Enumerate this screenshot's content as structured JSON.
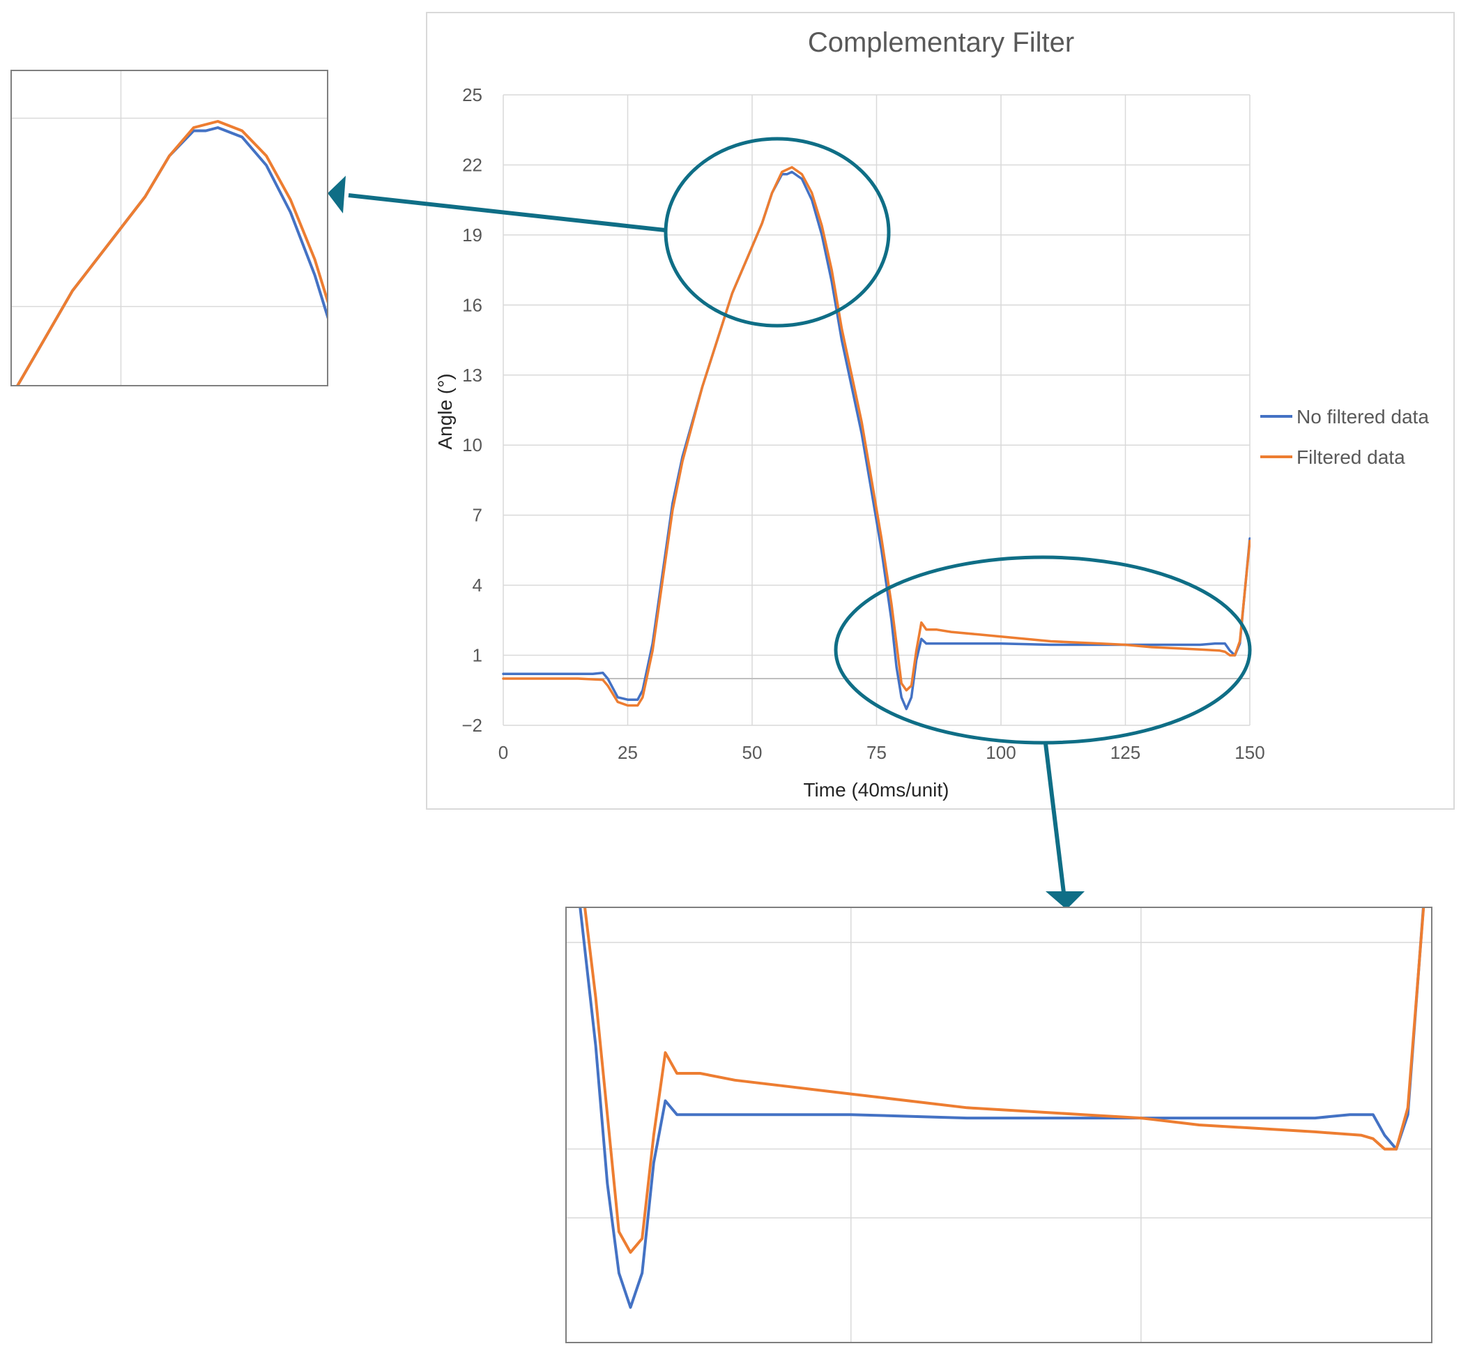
{
  "chart_data": {
    "type": "line",
    "title": "Complementary Filter",
    "xlabel": "Time (40ms/unit)",
    "ylabel": "Angle (°)",
    "xlim": [
      0,
      150
    ],
    "ylim": [
      -2,
      25
    ],
    "x_ticks": [
      0,
      25,
      50,
      75,
      100,
      125,
      150
    ],
    "y_ticks": [
      -2,
      1,
      4,
      7,
      10,
      13,
      16,
      19,
      22,
      25
    ],
    "grid": true,
    "legend_position": "right",
    "series": [
      {
        "name": "No filtered data",
        "color": "#4472c4",
        "points": [
          [
            0,
            0.2
          ],
          [
            5,
            0.2
          ],
          [
            10,
            0.2
          ],
          [
            15,
            0.2
          ],
          [
            18,
            0.2
          ],
          [
            20,
            0.25
          ],
          [
            21,
            0.0
          ],
          [
            23,
            -0.8
          ],
          [
            25,
            -0.9
          ],
          [
            27,
            -0.9
          ],
          [
            28,
            -0.5
          ],
          [
            30,
            1.5
          ],
          [
            32,
            4.5
          ],
          [
            34,
            7.5
          ],
          [
            36,
            9.5
          ],
          [
            38,
            11
          ],
          [
            40,
            12.5
          ],
          [
            43,
            14.5
          ],
          [
            46,
            16.5
          ],
          [
            49,
            18.0
          ],
          [
            52,
            19.5
          ],
          [
            54,
            20.8
          ],
          [
            56,
            21.6
          ],
          [
            57,
            21.6
          ],
          [
            58,
            21.7
          ],
          [
            60,
            21.4
          ],
          [
            62,
            20.5
          ],
          [
            64,
            19.0
          ],
          [
            66,
            17.0
          ],
          [
            68,
            14.5
          ],
          [
            70,
            12.5
          ],
          [
            72,
            10.5
          ],
          [
            74,
            8
          ],
          [
            76,
            5.5
          ],
          [
            78,
            2.5
          ],
          [
            79,
            0.5
          ],
          [
            80,
            -0.8
          ],
          [
            81,
            -1.3
          ],
          [
            82,
            -0.8
          ],
          [
            83,
            0.8
          ],
          [
            84,
            1.7
          ],
          [
            85,
            1.5
          ],
          [
            86,
            1.5
          ],
          [
            90,
            1.5
          ],
          [
            95,
            1.5
          ],
          [
            100,
            1.5
          ],
          [
            110,
            1.45
          ],
          [
            120,
            1.45
          ],
          [
            130,
            1.45
          ],
          [
            140,
            1.45
          ],
          [
            143,
            1.5
          ],
          [
            145,
            1.5
          ],
          [
            146,
            1.2
          ],
          [
            147,
            1.0
          ],
          [
            148,
            1.5
          ],
          [
            150,
            6.0
          ]
        ]
      },
      {
        "name": "Filtered data",
        "color": "#ed7d31",
        "points": [
          [
            0,
            0
          ],
          [
            5,
            0
          ],
          [
            10,
            0
          ],
          [
            15,
            0
          ],
          [
            20,
            -0.05
          ],
          [
            21,
            -0.3
          ],
          [
            23,
            -1.0
          ],
          [
            25,
            -1.15
          ],
          [
            27,
            -1.15
          ],
          [
            28,
            -0.8
          ],
          [
            30,
            1.2
          ],
          [
            32,
            4.2
          ],
          [
            34,
            7.2
          ],
          [
            36,
            9.3
          ],
          [
            38,
            10.9
          ],
          [
            40,
            12.5
          ],
          [
            43,
            14.5
          ],
          [
            46,
            16.5
          ],
          [
            49,
            18
          ],
          [
            52,
            19.5
          ],
          [
            54,
            20.8
          ],
          [
            56,
            21.7
          ],
          [
            58,
            21.9
          ],
          [
            60,
            21.6
          ],
          [
            62,
            20.8
          ],
          [
            64,
            19.4
          ],
          [
            66,
            17.5
          ],
          [
            68,
            15
          ],
          [
            70,
            13
          ],
          [
            72,
            11
          ],
          [
            74,
            8.5
          ],
          [
            76,
            6
          ],
          [
            78,
            3.2
          ],
          [
            79,
            1.5
          ],
          [
            80,
            -0.2
          ],
          [
            81,
            -0.5
          ],
          [
            82,
            -0.3
          ],
          [
            83,
            1.2
          ],
          [
            84,
            2.4
          ],
          [
            85,
            2.1
          ],
          [
            87,
            2.1
          ],
          [
            90,
            2.0
          ],
          [
            95,
            1.9
          ],
          [
            100,
            1.8
          ],
          [
            110,
            1.6
          ],
          [
            120,
            1.5
          ],
          [
            125,
            1.45
          ],
          [
            130,
            1.35
          ],
          [
            135,
            1.3
          ],
          [
            140,
            1.25
          ],
          [
            144,
            1.2
          ],
          [
            145,
            1.15
          ],
          [
            146,
            1.0
          ],
          [
            147,
            1.0
          ],
          [
            148,
            1.6
          ],
          [
            150,
            5.9
          ]
        ]
      }
    ]
  }
}
